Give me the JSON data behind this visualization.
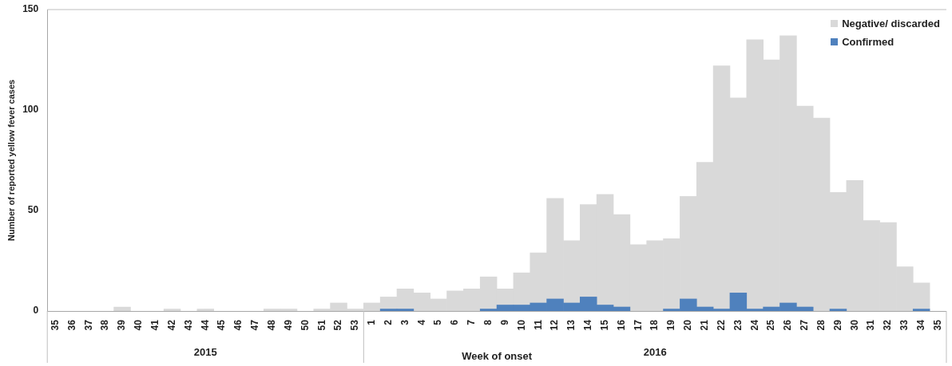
{
  "chart_data": {
    "type": "bar",
    "stacked": true,
    "xlabel": "Week of onset",
    "ylabel": "Number of reported yellow fever cases",
    "categories": [
      "35",
      "36",
      "37",
      "38",
      "39",
      "40",
      "41",
      "42",
      "43",
      "44",
      "45",
      "46",
      "47",
      "48",
      "49",
      "50",
      "51",
      "52",
      "53",
      "1",
      "2",
      "3",
      "4",
      "5",
      "6",
      "7",
      "8",
      "9",
      "10",
      "11",
      "12",
      "13",
      "14",
      "15",
      "16",
      "17",
      "18",
      "19",
      "20",
      "21",
      "22",
      "23",
      "24",
      "25",
      "26",
      "27",
      "28",
      "29",
      "30",
      "31",
      "32",
      "33",
      "34",
      "35"
    ],
    "series": [
      {
        "name": "Confirmed",
        "color": "#4f81bd",
        "values": [
          null,
          null,
          null,
          null,
          null,
          null,
          null,
          null,
          null,
          null,
          null,
          null,
          null,
          null,
          null,
          null,
          null,
          null,
          null,
          null,
          1,
          1,
          null,
          null,
          null,
          null,
          1,
          3,
          3,
          4,
          6,
          4,
          7,
          3,
          2,
          null,
          null,
          1,
          6,
          2,
          1,
          9,
          1,
          2,
          4,
          2,
          null,
          1,
          null,
          null,
          null,
          null,
          1,
          null
        ]
      },
      {
        "name": "Negative/ discarded",
        "color": "#d9d9d9",
        "values": [
          null,
          null,
          null,
          null,
          2,
          null,
          null,
          1,
          null,
          1,
          null,
          null,
          null,
          1,
          1,
          null,
          1,
          4,
          1,
          4,
          6,
          10,
          9,
          6,
          10,
          11,
          16,
          8,
          16,
          25,
          50,
          31,
          46,
          55,
          46,
          33,
          35,
          35,
          51,
          72,
          121,
          97,
          134,
          123,
          133,
          100,
          96,
          58,
          65,
          45,
          44,
          22,
          13,
          null
        ]
      }
    ],
    "ylim": [
      0,
      150
    ],
    "yticks": [
      0,
      50,
      100,
      150
    ],
    "grid": false,
    "legend": "top right",
    "annotations": [
      "2015",
      "2016"
    ]
  }
}
